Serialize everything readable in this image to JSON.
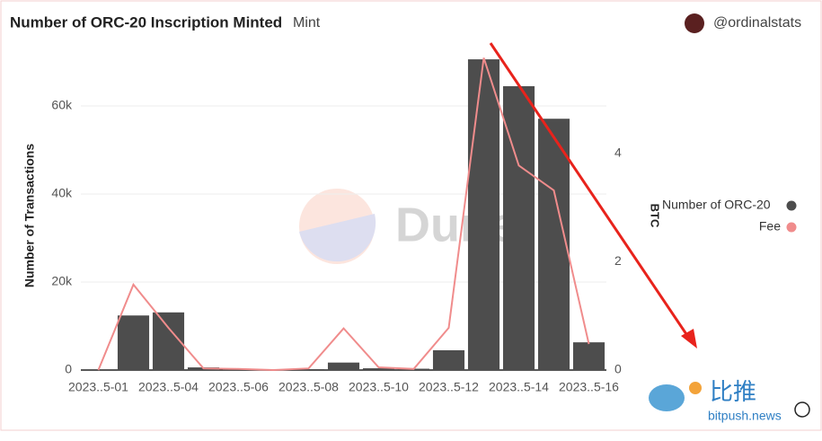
{
  "chart_data": {
    "type": "bar",
    "title": "Number of ORC-20 Inscription Minted",
    "subtitle": "Mint",
    "author": "@ordinalstats",
    "watermark": "Dune",
    "logo": {
      "text": "比推",
      "site": "bitpush.news"
    },
    "ylabel": "Number of Transactions",
    "y2label": "BTC",
    "categories": [
      "2023..5-01",
      null,
      "2023..5-04",
      null,
      "2023..5-06",
      null,
      "2023..5-08",
      null,
      "2023..5-10",
      null,
      "2023..5-12",
      null,
      "2023..5-14",
      null,
      "2023..5-16"
    ],
    "series": [
      {
        "name": "Number of ORC-20",
        "color": "#4d4d4d",
        "type": "bar",
        "values": [
          0,
          12400,
          13100,
          600,
          100,
          0,
          200,
          1700,
          400,
          300,
          4500,
          70600,
          64500,
          57100,
          6300
        ]
      },
      {
        "name": "Fee",
        "color": "#f08c8c",
        "type": "line",
        "axis": "y2",
        "values": [
          0,
          1.58,
          0.78,
          0.03,
          0.02,
          0,
          0.03,
          0.77,
          0.05,
          0.02,
          0.78,
          5.77,
          3.78,
          3.32,
          0.48
        ]
      }
    ],
    "ylim": [
      0,
      75000
    ],
    "yticks": [
      0,
      {
        "value": 20000,
        "label": "20k"
      },
      {
        "value": 40000,
        "label": "40k"
      },
      {
        "value": 60000,
        "label": "60k"
      }
    ],
    "y2lim": [
      0,
      6.1
    ],
    "y2ticks": [
      0,
      2,
      4
    ],
    "grid": true,
    "legend": "right"
  }
}
